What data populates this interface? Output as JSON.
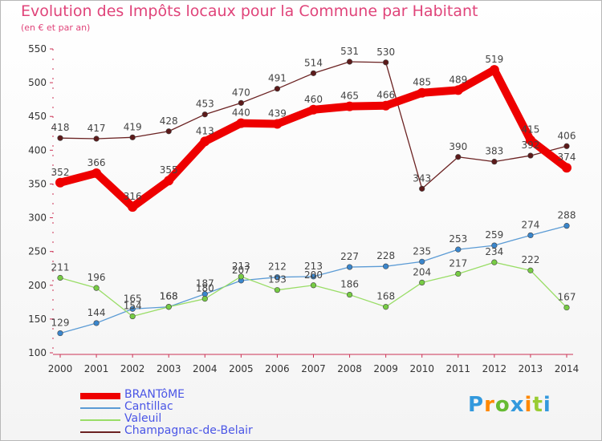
{
  "chart_data": {
    "type": "line",
    "title": "Evolution des Impôts locaux pour la Commune par Habitant",
    "subtitle": "(en € et par an)",
    "categories": [
      "2000",
      "2001",
      "2002",
      "2003",
      "2004",
      "2005",
      "2006",
      "2007",
      "2008",
      "2009",
      "2010",
      "2011",
      "2012",
      "2013",
      "2014"
    ],
    "ylim": [
      100,
      550
    ],
    "yticks": [
      100,
      150,
      200,
      250,
      300,
      350,
      400,
      450,
      500,
      550
    ],
    "grid": false,
    "legend_position": "bottom-left",
    "series": [
      {
        "name": "BRANTôME",
        "color": "#ee0000",
        "values": [
          352,
          366,
          316,
          355,
          413,
          440,
          439,
          460,
          465,
          466,
          485,
          489,
          519,
          415,
          374
        ]
      },
      {
        "name": "Cantillac",
        "color": "#5b9bd5",
        "values": [
          129,
          144,
          165,
          168,
          187,
          207,
          212,
          213,
          227,
          228,
          235,
          253,
          259,
          274,
          288
        ]
      },
      {
        "name": "Valeuil",
        "color": "#99dd66",
        "values": [
          211,
          196,
          154,
          168,
          180,
          213,
          193,
          200,
          186,
          168,
          204,
          217,
          234,
          222,
          167
        ]
      },
      {
        "name": "Champagnac-de-Belair",
        "color": "#6b2222",
        "values": [
          418,
          417,
          419,
          428,
          453,
          470,
          491,
          514,
          531,
          530,
          343,
          390,
          383,
          392,
          406
        ]
      }
    ]
  },
  "logo": {
    "text": "Proxiti"
  }
}
